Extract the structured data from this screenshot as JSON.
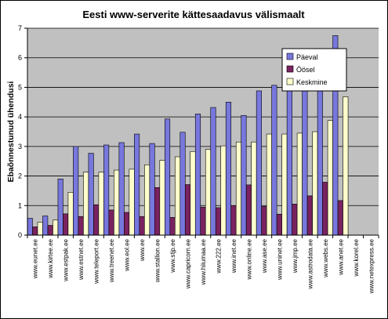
{
  "chart_data": {
    "type": "bar",
    "title": "Eesti www-serverite kättesaadavus välismaalt",
    "ylabel": "Ebaõnnestunud ühendusi",
    "xlabel": "",
    "ylim": [
      0,
      7
    ],
    "yticks": [
      0,
      1,
      2,
      3,
      4,
      5,
      6,
      7
    ],
    "grid": "horizontal",
    "legend_position": "top-right",
    "categories": [
      "www.eunet.ee",
      "www.kirtee.ee",
      "www.estpak.ee",
      "www.estnet.ee",
      "www.teleport.ee",
      "www.treenet.ee",
      "www.eol.ee",
      "www.ee",
      "www.stallion.ee",
      "www.stjp.ee",
      "www.capricorn.ee",
      "www.hiiumaa.ee",
      "www.222.ee",
      "www.inet.ee",
      "www.online.ee",
      "www.ase.ee",
      "www.uninet.ee",
      "www.jmp.ee",
      "www.astrodata.ee",
      "www.webs.ee",
      "www.anet.ee",
      "www.korel.ee",
      "www.netexpress.ee"
    ],
    "series": [
      {
        "name": "Päeval",
        "color": "#7777dd",
        "values": [
          0.57,
          0.65,
          1.9,
          3.0,
          2.77,
          3.05,
          3.13,
          3.42,
          3.1,
          3.93,
          3.48,
          4.1,
          4.32,
          4.5,
          4.05,
          4.88,
          5.07,
          5.05,
          4.9,
          5.3,
          6.75,
          0,
          0
        ]
      },
      {
        "name": "Öösel",
        "color": "#7a2260",
        "values": [
          0.28,
          0.33,
          0.72,
          0.63,
          1.03,
          0.85,
          0.77,
          0.63,
          1.61,
          0.6,
          1.71,
          0.95,
          0.93,
          1.0,
          1.7,
          0.97,
          0.71,
          1.05,
          1.33,
          1.79,
          1.17,
          0,
          0
        ]
      },
      {
        "name": "Keskmine",
        "color": "#ffffcc",
        "values": [
          0.44,
          0.51,
          1.45,
          2.13,
          2.13,
          2.2,
          2.23,
          2.38,
          2.53,
          2.65,
          2.83,
          2.9,
          3.02,
          3.15,
          3.15,
          3.42,
          3.42,
          3.45,
          3.5,
          3.88,
          4.68,
          0,
          0
        ]
      }
    ]
  }
}
